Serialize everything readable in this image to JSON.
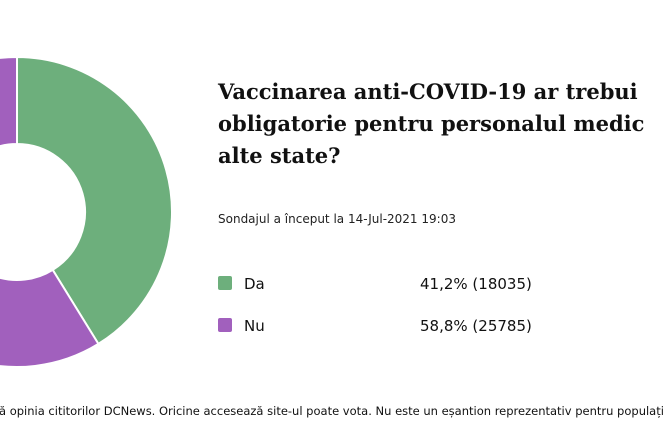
{
  "chart_data": {
    "type": "donut",
    "title_lines": [
      "Vaccinarea anti-COVID-19 ar trebui",
      "obligatorie pentru personalul medic",
      "alte state?"
    ],
    "subtitle": "Sondajul a început la 14-Jul-2021 19:03",
    "categories": [
      "Da",
      "Nu"
    ],
    "values": [
      41.2,
      58.8
    ],
    "value_labels": [
      "41,2% (18035)",
      "58,8% (25785)"
    ],
    "colors": [
      "#6daf7c",
      "#a160bd"
    ],
    "note": "ă opinia cititorilor DCNews. Oricine accesează site-ul poate vota. Nu este un eșantion reprezentativ pentru populați"
  }
}
